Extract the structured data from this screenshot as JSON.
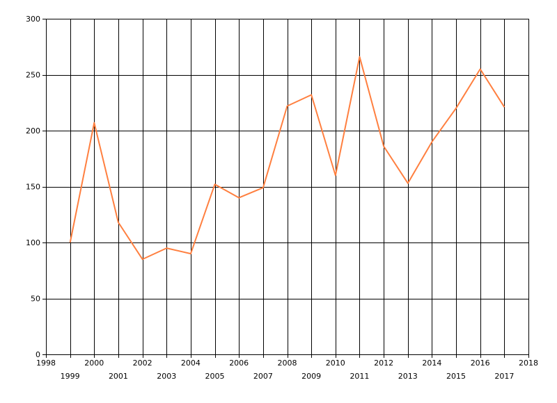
{
  "chart_data": {
    "type": "line",
    "title": "",
    "xlabel": "",
    "ylabel": "",
    "xlim": [
      1998,
      2018
    ],
    "ylim": [
      0,
      300
    ],
    "x_ticks": [
      1998,
      1999,
      2000,
      2001,
      2002,
      2003,
      2004,
      2005,
      2006,
      2007,
      2008,
      2009,
      2010,
      2011,
      2012,
      2013,
      2014,
      2015,
      2016,
      2017,
      2018
    ],
    "y_ticks": [
      0,
      50,
      100,
      150,
      200,
      250,
      300
    ],
    "grid": true,
    "legend": "none",
    "series": [
      {
        "color": "#ff7f3f",
        "x": [
          1999,
          2000,
          2001,
          2002,
          2003,
          2004,
          2005,
          2006,
          2007,
          2008,
          2009,
          2010,
          2011,
          2012,
          2013,
          2014,
          2015,
          2016,
          2017
        ],
        "values": [
          100,
          207,
          118,
          85,
          95,
          90,
          152,
          140,
          149,
          222,
          232,
          160,
          266,
          186,
          153,
          190,
          220,
          255,
          221
        ]
      }
    ]
  }
}
